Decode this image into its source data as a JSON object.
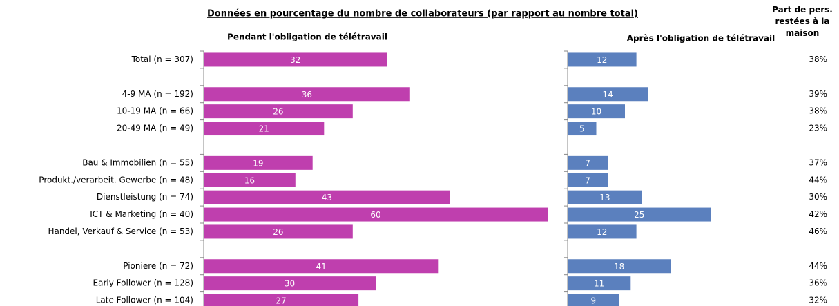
{
  "chart_data": {
    "type": "bar",
    "title": "Données en pourcentage du nombre de collaborateurs (par rapport au nombre total)",
    "categories": [
      "Total (n = 307)",
      null,
      "4-9 MA (n = 192)",
      "10-19 MA (n = 66)",
      "20-49 MA (n = 49)",
      null,
      "Bau & Immobilien (n = 55)",
      "Produkt./verarbeit. Gewerbe (n = 48)",
      "Dienstleistung (n = 74)",
      "ICT & Marketing (n = 40)",
      "Handel, Verkauf & Service (n = 53)",
      null,
      "Pioniere (n = 72)",
      "Early Follower (n = 128)",
      "Late Follower (n = 104)"
    ],
    "series": [
      {
        "name": "Pendant l'obligation de télétravail",
        "color": "#bf3fae",
        "xlim": [
          0,
          60
        ],
        "values": [
          32,
          null,
          36,
          26,
          21,
          null,
          19,
          16,
          43,
          60,
          26,
          null,
          41,
          30,
          27
        ]
      },
      {
        "name": "Après l'obligation de télétravail",
        "color": "#5b80be",
        "xlim": [
          0,
          30
        ],
        "values": [
          12,
          null,
          14,
          10,
          5,
          null,
          7,
          7,
          13,
          25,
          12,
          null,
          18,
          11,
          9
        ]
      }
    ],
    "share": {
      "name": "Part de pers. restées à la maison",
      "values": [
        38,
        null,
        39,
        38,
        23,
        null,
        37,
        44,
        30,
        42,
        46,
        null,
        44,
        36,
        32
      ],
      "value_labels": [
        "38%",
        null,
        "39%",
        "38%",
        "23%",
        null,
        "37%",
        "44%",
        "30%",
        "42%",
        "46%",
        null,
        "44%",
        "36%",
        "32%"
      ]
    }
  }
}
